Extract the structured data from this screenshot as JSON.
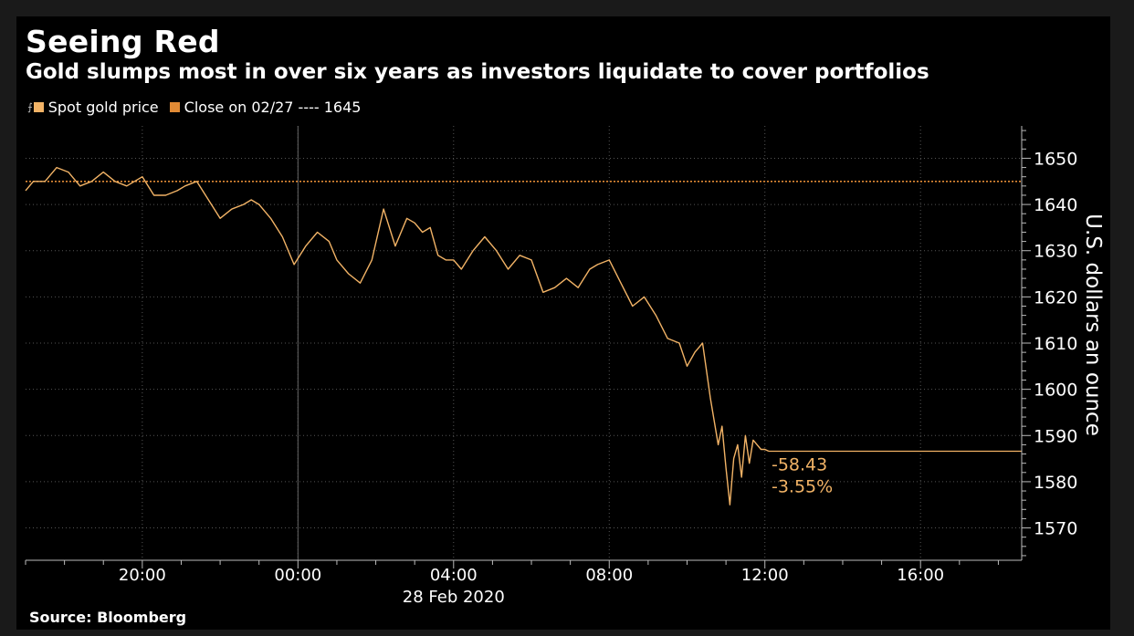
{
  "title": "Seeing Red",
  "subtitle": "Gold slumps most in over six years as investors liquidate to cover portfolios",
  "legend": {
    "series_label": "Spot gold price",
    "close_label": "Close on 02/27 ---- 1645"
  },
  "source": "Source: Bloomberg",
  "colors": {
    "background": "#000000",
    "series": "#f2b366",
    "reference": "#e08a35",
    "text": "#ffffff",
    "grid": "#555555"
  },
  "chart_data": {
    "type": "line",
    "ylabel": "U.S. dollars an ounce",
    "xlabel": "28 Feb 2020",
    "x_tick_labels": [
      "20:00",
      "00:00",
      "04:00",
      "08:00",
      "12:00",
      "16:00"
    ],
    "x_tick_hours": [
      20,
      24,
      28,
      32,
      36,
      40
    ],
    "y_ticks": [
      1570,
      1580,
      1590,
      1600,
      1610,
      1620,
      1630,
      1640,
      1650
    ],
    "xlim_hours": [
      17,
      42.6
    ],
    "ylim": [
      1563,
      1657
    ],
    "grid": true,
    "legend_position": "top-left",
    "reference_line": {
      "name": "Close on 02/27",
      "value": 1645
    },
    "annotations": {
      "change": "-58.43",
      "change_pct": "-3.55%",
      "last_value": 1586.6
    },
    "series": [
      {
        "name": "Spot gold price",
        "x_hours": [
          17.0,
          17.2,
          17.5,
          17.8,
          18.1,
          18.2,
          18.4,
          18.7,
          19.0,
          19.3,
          19.6,
          20.0,
          20.3,
          20.6,
          20.9,
          21.1,
          21.4,
          21.7,
          22.0,
          22.3,
          22.6,
          22.8,
          23.0,
          23.3,
          23.6,
          23.9,
          24.2,
          24.5,
          24.8,
          25.0,
          25.3,
          25.6,
          25.9,
          26.2,
          26.5,
          26.8,
          27.0,
          27.2,
          27.4,
          27.6,
          27.8,
          28.0,
          28.2,
          28.5,
          28.8,
          29.1,
          29.4,
          29.7,
          30.0,
          30.3,
          30.6,
          30.9,
          31.2,
          31.5,
          31.7,
          32.0,
          32.3,
          32.6,
          32.9,
          33.2,
          33.5,
          33.8,
          34.0,
          34.2,
          34.4,
          34.6,
          34.8,
          34.9,
          35.0,
          35.1,
          35.2,
          35.3,
          35.4,
          35.5,
          35.6,
          35.7,
          35.8,
          35.9,
          36.0,
          36.1
        ],
        "values": [
          1643,
          1645,
          1645,
          1648,
          1647,
          1646,
          1644,
          1645,
          1647,
          1645,
          1644,
          1646,
          1642,
          1642,
          1643,
          1644,
          1645,
          1641,
          1637,
          1639,
          1640,
          1641,
          1640,
          1637,
          1633,
          1627,
          1631,
          1634,
          1632,
          1628,
          1625,
          1623,
          1628,
          1639,
          1631,
          1637,
          1636,
          1634,
          1635,
          1629,
          1628,
          1628,
          1626,
          1630,
          1633,
          1630,
          1626,
          1629,
          1628,
          1621,
          1622,
          1624,
          1622,
          1626,
          1627,
          1628,
          1623,
          1618,
          1620,
          1616,
          1611,
          1610,
          1605,
          1608,
          1610,
          1598,
          1588,
          1592,
          1583,
          1575,
          1585,
          1588,
          1581,
          1590,
          1584,
          1589,
          1588,
          1587,
          1587,
          1586.6
        ]
      }
    ]
  }
}
